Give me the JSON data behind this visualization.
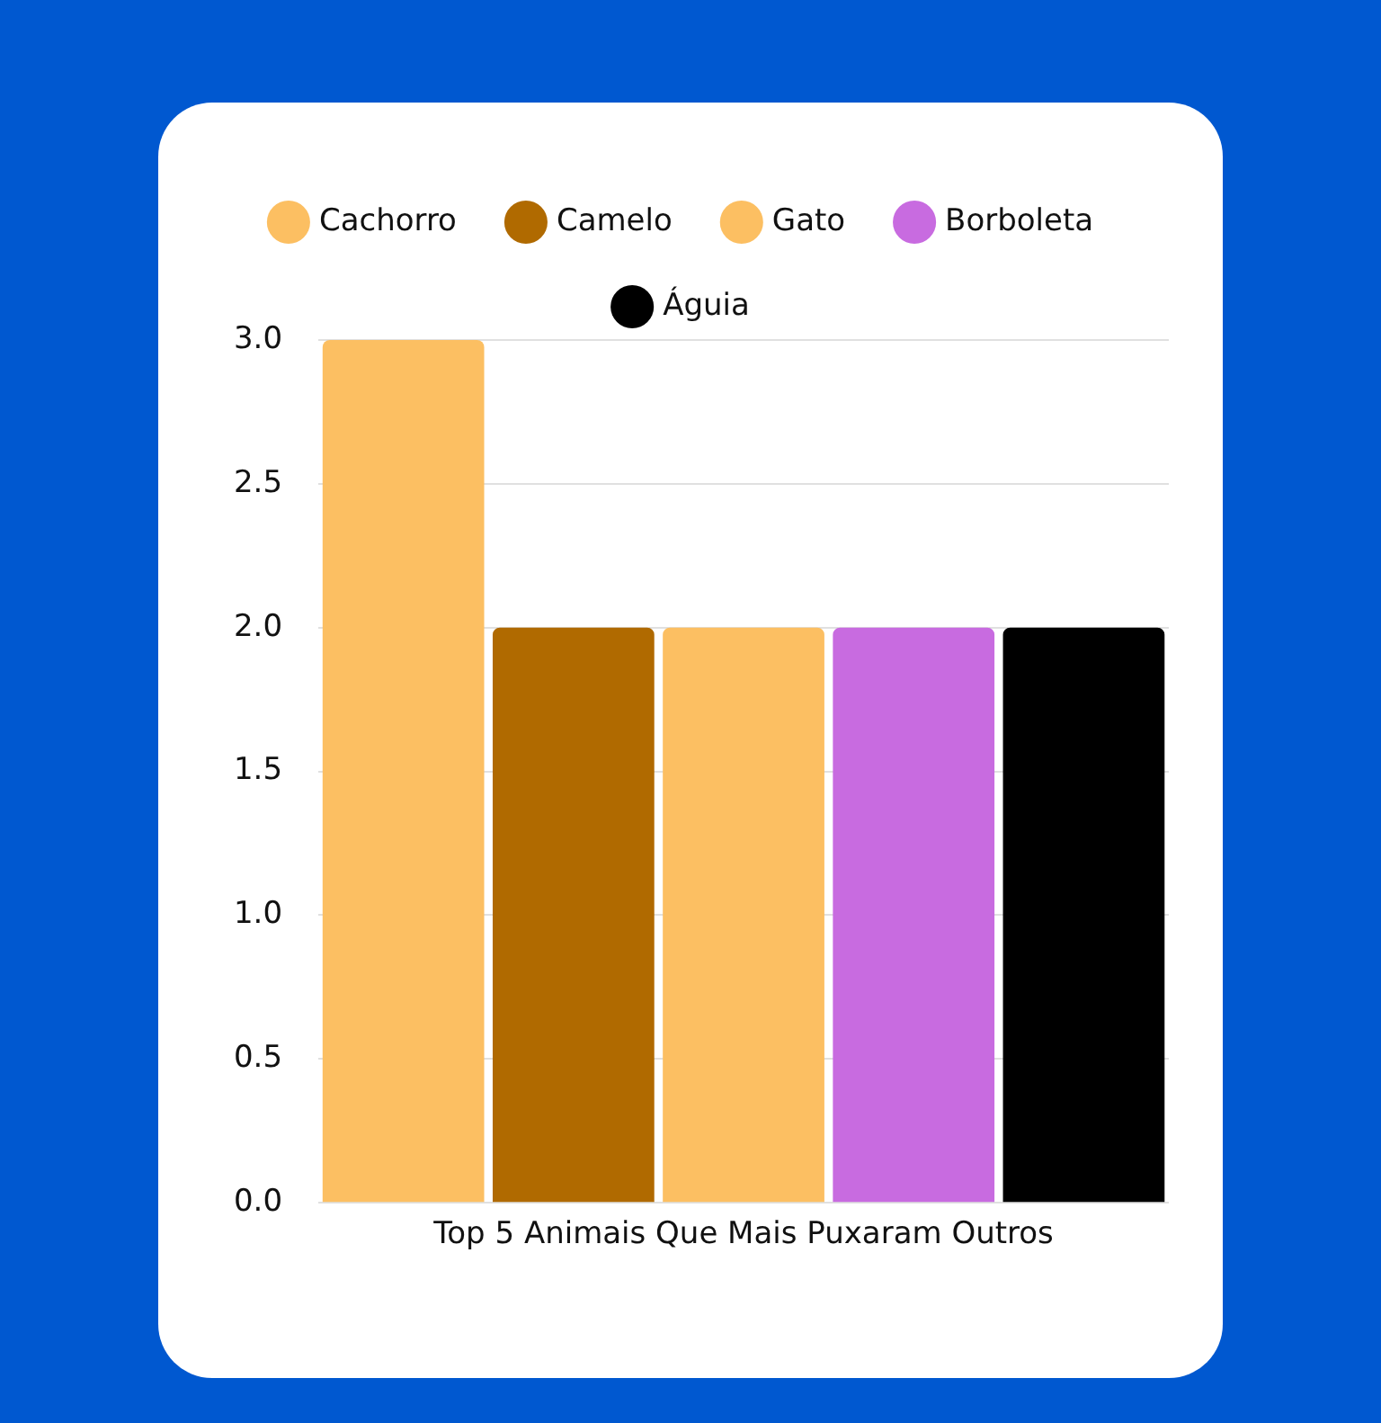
{
  "chart_data": {
    "type": "bar",
    "categories": [
      "Top 5 Animais Que Mais Puxaram Outros"
    ],
    "series": [
      {
        "name": "Cachorro",
        "color": "#fcbf62",
        "values": [
          3
        ]
      },
      {
        "name": "Camelo",
        "color": "#b06a00",
        "values": [
          2
        ]
      },
      {
        "name": "Gato",
        "color": "#fcbf62",
        "values": [
          2
        ]
      },
      {
        "name": "Borboleta",
        "color": "#c86be0",
        "values": [
          2
        ]
      },
      {
        "name": "Águia",
        "color": "#000000",
        "values": [
          2
        ]
      }
    ],
    "ylim": [
      0,
      3
    ],
    "yticks": [
      {
        "value": 0,
        "label": "0.0"
      },
      {
        "value": 0.5,
        "label": "0.5"
      },
      {
        "value": 1,
        "label": "1.0"
      },
      {
        "value": 1.5,
        "label": "1.5"
      },
      {
        "value": 2,
        "label": "2.0"
      },
      {
        "value": 2.5,
        "label": "2.5"
      },
      {
        "value": 3,
        "label": "3.0"
      }
    ],
    "grid": "y",
    "legend": "top"
  }
}
